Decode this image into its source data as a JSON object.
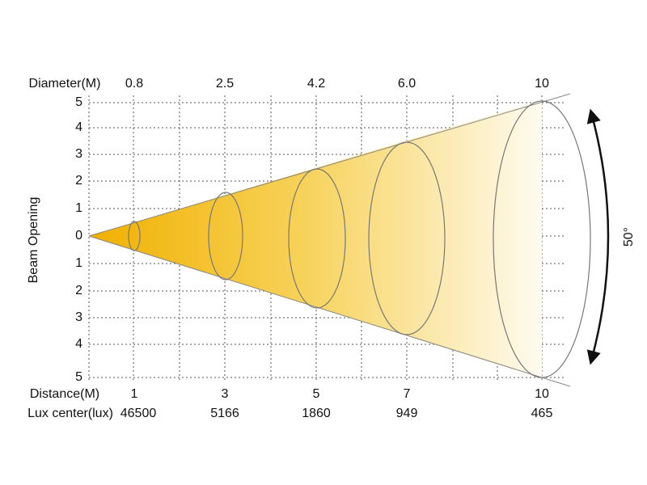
{
  "diameter_row": {
    "label": "Diameter(M)",
    "values": [
      0.8,
      2.5,
      4.2,
      "6.0",
      10
    ]
  },
  "beam_axis": {
    "label": "Beam Opening",
    "ticks": [
      5,
      4,
      3,
      2,
      1,
      0,
      1,
      2,
      3,
      4,
      5
    ]
  },
  "distance_row": {
    "label": "Distance(M)",
    "values": [
      1,
      3,
      5,
      7,
      10
    ]
  },
  "lux_row": {
    "label": "Lux center(lux)",
    "values": [
      46500,
      5166,
      1860,
      949,
      465
    ]
  },
  "angle": "50°"
}
